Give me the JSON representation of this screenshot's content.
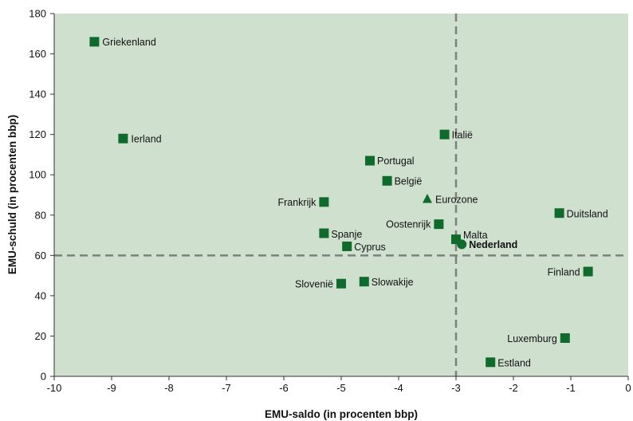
{
  "colors": {
    "plot_background": "#cfe0cf",
    "marker": "#0f6b2b",
    "reference_line": "#7f7f7f",
    "axis": "#333333"
  },
  "chart_data": {
    "type": "scatter",
    "xlabel": "EMU-saldo (in procenten bbp)",
    "ylabel": "EMU-schuld (in procenten bbp)",
    "xlim": [
      -10,
      0
    ],
    "ylim": [
      0,
      180
    ],
    "xticks": [
      "-10",
      "-9",
      "-8",
      "-7",
      "-6",
      "-5",
      "-4",
      "-3",
      "-2",
      "-1",
      "0"
    ],
    "yticks": [
      "0",
      "20",
      "40",
      "60",
      "80",
      "100",
      "120",
      "140",
      "160",
      "180"
    ],
    "grid": false,
    "reference_lines": [
      {
        "axis": "x",
        "value": -3,
        "style": "dashed"
      },
      {
        "axis": "y",
        "value": 60,
        "style": "dashed"
      }
    ],
    "points": [
      {
        "label": "Griekenland",
        "x": -9.3,
        "y": 166,
        "marker": "square"
      },
      {
        "label": "Ierland",
        "x": -8.8,
        "y": 118,
        "marker": "square"
      },
      {
        "label": "Italië",
        "x": -3.2,
        "y": 120,
        "marker": "square"
      },
      {
        "label": "Portugal",
        "x": -4.5,
        "y": 107,
        "marker": "square"
      },
      {
        "label": "België",
        "x": -4.2,
        "y": 97,
        "marker": "square"
      },
      {
        "label": "Eurozone",
        "x": -3.5,
        "y": 88,
        "marker": "triangle"
      },
      {
        "label": "Frankrijk",
        "x": -5.3,
        "y": 86.5,
        "marker": "square"
      },
      {
        "label": "Duitsland",
        "x": -1.2,
        "y": 81,
        "marker": "square"
      },
      {
        "label": "Oostenrijk",
        "x": -3.3,
        "y": 75.5,
        "marker": "square"
      },
      {
        "label": "Spanje",
        "x": -5.3,
        "y": 71,
        "marker": "square"
      },
      {
        "label": "Malta",
        "x": -3.0,
        "y": 68,
        "marker": "square"
      },
      {
        "label": "Nederland",
        "x": -2.9,
        "y": 65.5,
        "marker": "circle",
        "emphasis": true
      },
      {
        "label": "Cyprus",
        "x": -4.9,
        "y": 64.5,
        "marker": "square"
      },
      {
        "label": "Finland",
        "x": -0.7,
        "y": 52,
        "marker": "square"
      },
      {
        "label": "Slowakije",
        "x": -4.6,
        "y": 47,
        "marker": "square"
      },
      {
        "label": "Slovenië",
        "x": -5.0,
        "y": 46,
        "marker": "square"
      },
      {
        "label": "Luxemburg",
        "x": -1.1,
        "y": 19,
        "marker": "square"
      },
      {
        "label": "Estland",
        "x": -2.4,
        "y": 7,
        "marker": "square"
      }
    ]
  }
}
